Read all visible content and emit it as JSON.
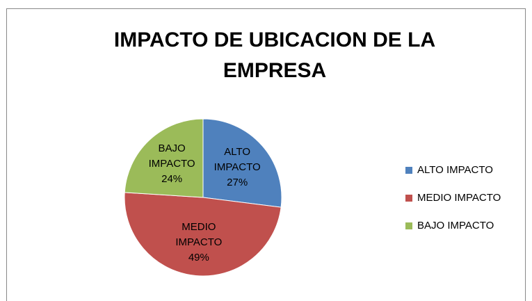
{
  "chart_data": {
    "type": "pie",
    "title": "IMPACTO DE UBICACION DE LA EMPRESA",
    "categories": [
      "ALTO IMPACTO",
      "MEDIO IMPACTO",
      "BAJO IMPACTO"
    ],
    "values": [
      27,
      49,
      24
    ],
    "value_labels": [
      "27%",
      "49%",
      "24%"
    ],
    "colors": [
      "#4f81bd",
      "#c0504d",
      "#9bbb59"
    ],
    "legend": "right"
  }
}
